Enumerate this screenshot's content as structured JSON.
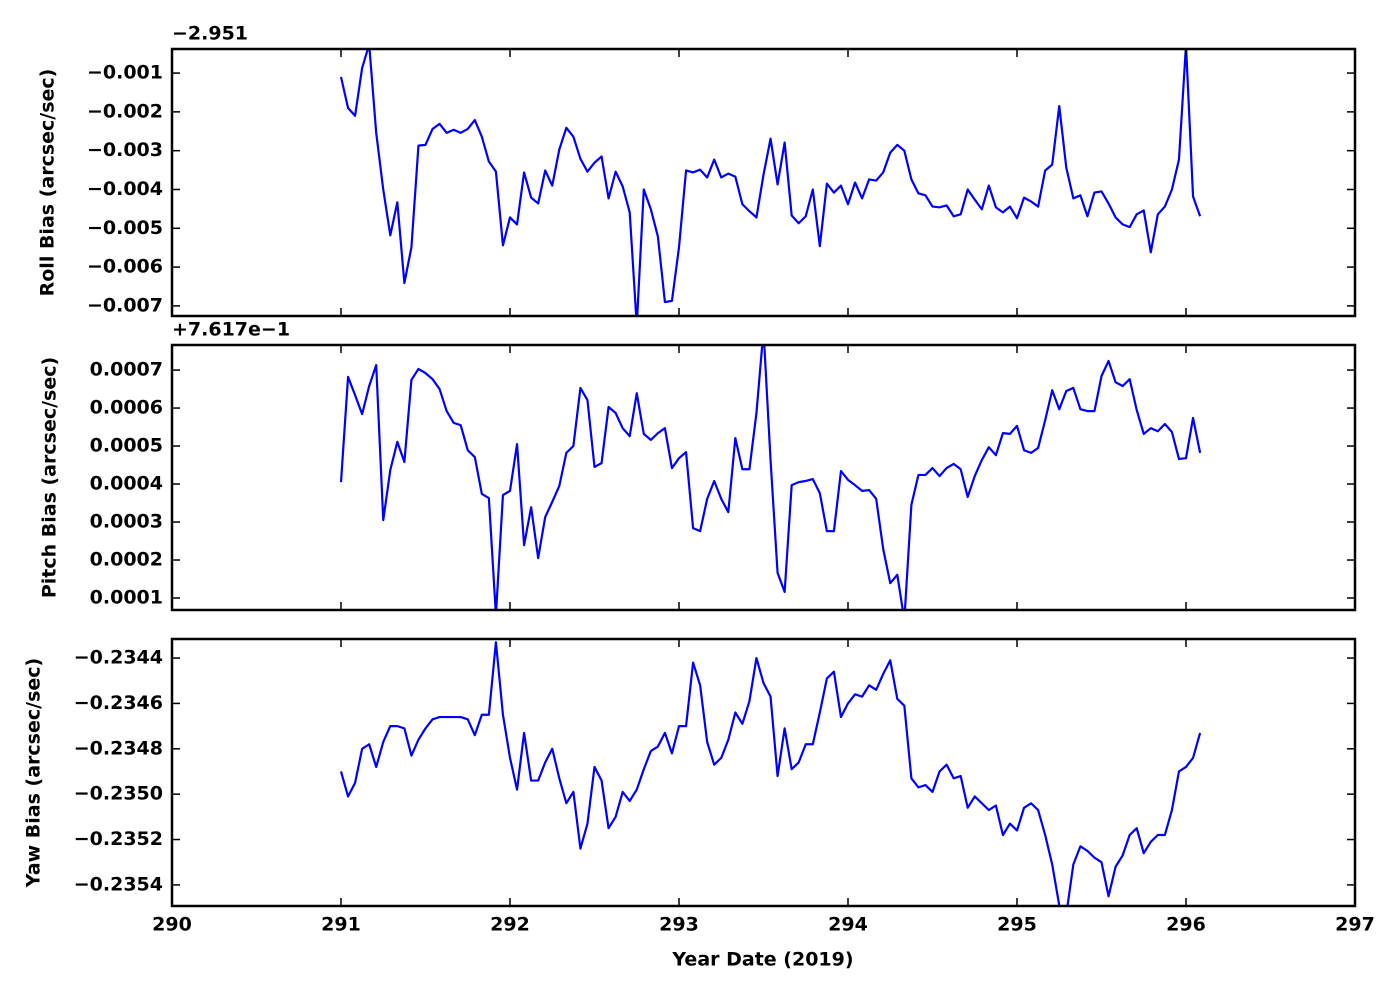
{
  "chart_data": {
    "type": "line",
    "xlabel": "Year Date (2019)",
    "xlim": [
      290,
      297
    ],
    "xticks": [
      290,
      291,
      292,
      293,
      294,
      295,
      296,
      297
    ],
    "x": [
      291,
      291.0417,
      291.0833,
      291.125,
      291.1667,
      291.2083,
      291.25,
      291.2917,
      291.3333,
      291.375,
      291.4167,
      291.4583,
      291.5,
      291.5417,
      291.5833,
      291.625,
      291.6667,
      291.7083,
      291.75,
      291.7917,
      291.8333,
      291.875,
      291.9167,
      291.9583,
      292,
      292.0417,
      292.0833,
      292.125,
      292.1667,
      292.2083,
      292.25,
      292.2917,
      292.3333,
      292.375,
      292.4167,
      292.4583,
      292.5,
      292.5417,
      292.5833,
      292.625,
      292.6667,
      292.7083,
      292.75,
      292.7917,
      292.8333,
      292.875,
      292.9167,
      292.9583,
      293,
      293.0417,
      293.0833,
      293.125,
      293.1667,
      293.2083,
      293.25,
      293.2917,
      293.3333,
      293.375,
      293.4167,
      293.4583,
      293.5,
      293.5417,
      293.5833,
      293.625,
      293.6667,
      293.7083,
      293.75,
      293.7917,
      293.8333,
      293.875,
      293.9167,
      293.9583,
      294,
      294.0417,
      294.0833,
      294.125,
      294.1667,
      294.2083,
      294.25,
      294.2917,
      294.3333,
      294.375,
      294.4167,
      294.4583,
      294.5,
      294.5417,
      294.5833,
      294.625,
      294.6667,
      294.7083,
      294.75,
      294.7917,
      294.8333,
      294.875,
      294.9167,
      294.9583,
      295,
      295.0417,
      295.0833,
      295.125,
      295.1667,
      295.2083,
      295.25,
      295.2917,
      295.3333,
      295.375,
      295.4167,
      295.4583,
      295.5,
      295.5417,
      295.5833,
      295.625,
      295.6667,
      295.7083,
      295.75,
      295.7917,
      295.8333,
      295.875,
      295.9167,
      295.9583,
      296,
      296.0417,
      296.0833
    ],
    "panels": [
      {
        "ylabel": "Roll Bias (arcsec/sec)",
        "offset_label": "−2.951",
        "ylim": [
          -0.00726,
          -0.00038
        ],
        "yticks": [
          {
            "value": -0.007,
            "label": "−0.007"
          },
          {
            "value": -0.006,
            "label": "−0.006"
          },
          {
            "value": -0.005,
            "label": "−0.005"
          },
          {
            "value": -0.004,
            "label": "−0.004"
          },
          {
            "value": -0.003,
            "label": "−0.003"
          },
          {
            "value": -0.002,
            "label": "−0.002"
          },
          {
            "value": -0.001,
            "label": "−0.001"
          }
        ],
        "series": [
          {
            "color": "#0000ff",
            "values": [
              -0.0011,
              -0.0019,
              -0.0021,
              -0.00087,
              -0.00026,
              -0.00254,
              -0.004,
              -0.00518,
              -0.00433,
              -0.00641,
              -0.00549,
              -0.00287,
              -0.00285,
              -0.00244,
              -0.00231,
              -0.00254,
              -0.00246,
              -0.00254,
              -0.00244,
              -0.00221,
              -0.00264,
              -0.00328,
              -0.00354,
              -0.00544,
              -0.00472,
              -0.0049,
              -0.00356,
              -0.00421,
              -0.00436,
              -0.00351,
              -0.0039,
              -0.00297,
              -0.00241,
              -0.00264,
              -0.00321,
              -0.00354,
              -0.00331,
              -0.00315,
              -0.00423,
              -0.00354,
              -0.00392,
              -0.00459,
              -0.0075,
              -0.004,
              -0.00451,
              -0.00521,
              -0.0069,
              -0.00687,
              -0.00549,
              -0.00351,
              -0.00356,
              -0.00349,
              -0.00369,
              -0.00323,
              -0.00369,
              -0.00359,
              -0.00367,
              -0.00438,
              -0.00456,
              -0.00472,
              -0.00362,
              -0.00269,
              -0.00387,
              -0.00279,
              -0.00467,
              -0.00487,
              -0.00469,
              -0.004,
              -0.00546,
              -0.00385,
              -0.00408,
              -0.0039,
              -0.00438,
              -0.00382,
              -0.00423,
              -0.00374,
              -0.00377,
              -0.00356,
              -0.00305,
              -0.00285,
              -0.003,
              -0.00374,
              -0.0041,
              -0.00415,
              -0.00444,
              -0.00446,
              -0.00441,
              -0.00469,
              -0.00464,
              -0.004,
              -0.00426,
              -0.00451,
              -0.0039,
              -0.00446,
              -0.00459,
              -0.00444,
              -0.00474,
              -0.00421,
              -0.00431,
              -0.00444,
              -0.00351,
              -0.00336,
              -0.00185,
              -0.00344,
              -0.00423,
              -0.00415,
              -0.00469,
              -0.00408,
              -0.00405,
              -0.00436,
              -0.00472,
              -0.0049,
              -0.00497,
              -0.00464,
              -0.00454,
              -0.00562,
              -0.00464,
              -0.00444,
              -0.004,
              -0.00323,
              -0.00028,
              -0.00418,
              -0.00469
            ]
          }
        ]
      },
      {
        "ylabel": "Pitch Bias (arcsec/sec)",
        "offset_label": "+7.617e−1",
        "ylim": [
          6.84e-05,
          0.000766
        ],
        "yticks": [
          0.0001,
          0.0002,
          0.0003,
          0.0004,
          0.0005,
          0.0006,
          0.0007
        ],
        "series": [
          {
            "color": "#0000ff",
            "values": [
              0.000405,
              0.000682,
              0.000634,
              0.000584,
              0.000658,
              0.000713,
              0.000305,
              0.000437,
              0.000511,
              0.000458,
              0.000674,
              0.000703,
              0.000692,
              0.000676,
              0.00065,
              0.000592,
              0.000561,
              0.000555,
              0.000489,
              0.000471,
              0.000374,
              0.000363,
              5.5e-05,
              0.000371,
              0.000382,
              0.000505,
              0.000239,
              0.000339,
              0.000205,
              0.000313,
              0.000353,
              0.000395,
              0.000482,
              0.0005,
              0.000653,
              0.000621,
              0.000445,
              0.000455,
              0.000603,
              0.000587,
              0.000547,
              0.000526,
              0.000639,
              0.000532,
              0.000516,
              0.000534,
              0.000547,
              0.000442,
              0.000468,
              0.000484,
              0.000284,
              0.000276,
              0.000361,
              0.000408,
              0.000361,
              0.000326,
              0.000521,
              0.000439,
              0.000439,
              0.000587,
              0.000805,
              0.000463,
              0.000166,
              0.000116,
              0.000397,
              0.000405,
              0.000408,
              0.000413,
              0.000376,
              0.000276,
              0.000276,
              0.000434,
              0.000411,
              0.000397,
              0.000382,
              0.000384,
              0.000361,
              0.000229,
              0.000139,
              0.000161,
              4.2e-05,
              0.000345,
              0.000424,
              0.000424,
              0.000442,
              0.000421,
              0.000442,
              0.000453,
              0.000439,
              0.000366,
              0.000421,
              0.000463,
              0.000497,
              0.000476,
              0.000534,
              0.000532,
              0.000553,
              0.000489,
              0.000482,
              0.000495,
              0.000568,
              0.000647,
              0.000597,
              0.000645,
              0.000653,
              0.000597,
              0.000592,
              0.000592,
              0.000684,
              0.000724,
              0.000668,
              0.000658,
              0.000676,
              0.000595,
              0.000532,
              0.000547,
              0.000539,
              0.000558,
              0.000537,
              0.000466,
              0.000468,
              0.000574,
              0.000482
            ]
          }
        ]
      },
      {
        "ylabel": "Yaw Bias (arcsec/sec)",
        "ylim": [
          -0.235493,
          -0.234316
        ],
        "yticks": [
          {
            "value": -0.2354,
            "label": "−0.2354"
          },
          {
            "value": -0.2352,
            "label": "−0.2352"
          },
          {
            "value": -0.235,
            "label": "−0.2350"
          },
          {
            "value": -0.2348,
            "label": "−0.2348"
          },
          {
            "value": -0.2346,
            "label": "−0.2346"
          },
          {
            "value": -0.2344,
            "label": "−0.2344"
          }
        ],
        "series": [
          {
            "color": "#0000ff",
            "values": [
              -0.2349,
              -0.23501,
              -0.23495,
              -0.2348,
              -0.23478,
              -0.23488,
              -0.23477,
              -0.2347,
              -0.2347,
              -0.23471,
              -0.23483,
              -0.23476,
              -0.23471,
              -0.23467,
              -0.23466,
              -0.23466,
              -0.23466,
              -0.23466,
              -0.23467,
              -0.23474,
              -0.23465,
              -0.23465,
              -0.23433,
              -0.23465,
              -0.23484,
              -0.23498,
              -0.23473,
              -0.23494,
              -0.23494,
              -0.23486,
              -0.2348,
              -0.23493,
              -0.23504,
              -0.23499,
              -0.23524,
              -0.23513,
              -0.23488,
              -0.23494,
              -0.23515,
              -0.2351,
              -0.23499,
              -0.23503,
              -0.23498,
              -0.23489,
              -0.23481,
              -0.23479,
              -0.23473,
              -0.23482,
              -0.2347,
              -0.2347,
              -0.23442,
              -0.23452,
              -0.23477,
              -0.23487,
              -0.23484,
              -0.23476,
              -0.23464,
              -0.23469,
              -0.23459,
              -0.2344,
              -0.23451,
              -0.23457,
              -0.23492,
              -0.23471,
              -0.23489,
              -0.23486,
              -0.23478,
              -0.23478,
              -0.23464,
              -0.23449,
              -0.23446,
              -0.23466,
              -0.2346,
              -0.23456,
              -0.23457,
              -0.23452,
              -0.23454,
              -0.23447,
              -0.23441,
              -0.23458,
              -0.23461,
              -0.23493,
              -0.23497,
              -0.23496,
              -0.23499,
              -0.2349,
              -0.23487,
              -0.23493,
              -0.23492,
              -0.23506,
              -0.23501,
              -0.23504,
              -0.23507,
              -0.23505,
              -0.23518,
              -0.23513,
              -0.23516,
              -0.23506,
              -0.23504,
              -0.23507,
              -0.23518,
              -0.23531,
              -0.23549,
              -0.23553,
              -0.23531,
              -0.23523,
              -0.23525,
              -0.23528,
              -0.2353,
              -0.23545,
              -0.23532,
              -0.23527,
              -0.23518,
              -0.23515,
              -0.23526,
              -0.23521,
              -0.23518,
              -0.23518,
              -0.23507,
              -0.2349,
              -0.23488,
              -0.23484,
              -0.23473
            ]
          }
        ]
      }
    ]
  }
}
